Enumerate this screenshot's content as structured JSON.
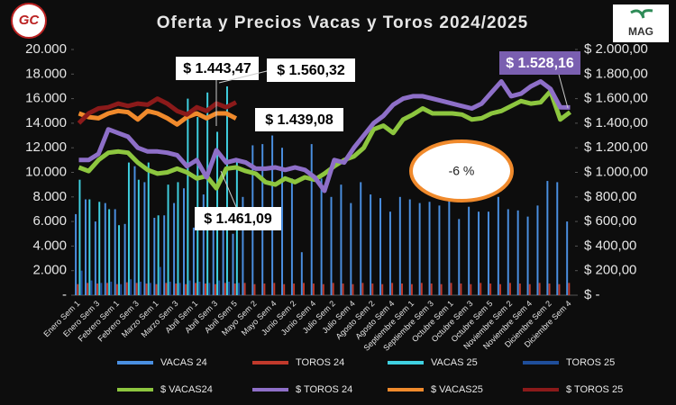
{
  "chart_data": {
    "type": "bar_line",
    "title": "Oferta y Precios Vacas y Toros 2024/2025",
    "logos": [
      "GC",
      "MAG"
    ],
    "categories": [
      "Enero Sem 1",
      null,
      "Enero Sem 3",
      null,
      "Febrero Sem 1",
      null,
      "Febrero Sem 3",
      null,
      "Marzo Sem 1",
      null,
      "Marzo Sem 3",
      null,
      "Abril Sem 1",
      null,
      "Abril Sem 3",
      null,
      "Abril Sem 5",
      null,
      "Mayo Sem 2",
      null,
      "Mayo Sem 4",
      null,
      "Junio Sem 2",
      null,
      "Junio Sem 4",
      null,
      "Julio Sem 2",
      null,
      "Julio Sem 4",
      null,
      "Agosto Sem 2",
      null,
      "Agosto Sem 4",
      null,
      "Septiembre Sem 1",
      null,
      "Septiembre Sem 3",
      null,
      "Octubre Sem 1",
      null,
      "Octubre Sem 3",
      null,
      "Octubre Sem 5",
      null,
      "Noviembre Sem 2",
      null,
      "Noviembre Sem 4",
      null,
      "Diciembre Sem 2",
      null,
      "Diciembre Sem 4"
    ],
    "series": [
      {
        "name": "VACAS 24",
        "kind": "bar",
        "color": "#4a8fe0",
        "values": [
          6600,
          7800,
          6000,
          7500,
          7000,
          5800,
          10500,
          9200,
          6300,
          6500,
          7500,
          8700,
          5500,
          8200,
          5700,
          6200,
          5000,
          8000,
          12200,
          12300,
          13000,
          12000,
          9500,
          3500,
          12300,
          9500,
          8000,
          9000,
          7500,
          9200,
          8200,
          7900,
          6800,
          8000,
          7800,
          7500,
          7600,
          7300,
          7800,
          6200,
          7200,
          6800,
          6800,
          8000,
          7000,
          6900,
          6400,
          7300,
          9300,
          9200,
          6000
        ]
      },
      {
        "name": "TOROS 24",
        "kind": "bar",
        "color": "#c0392b",
        "values": [
          900,
          1000,
          950,
          1000,
          900,
          1050,
          1000,
          950,
          900,
          1000,
          950,
          900,
          1000,
          950,
          900,
          1000,
          950,
          1000,
          900,
          950,
          1000,
          900,
          950,
          1000,
          950,
          900,
          1000,
          950,
          900,
          1000,
          950,
          900,
          1000,
          950,
          900,
          1000,
          950,
          900,
          1000,
          950,
          900,
          1000,
          950,
          900,
          1000,
          950,
          900,
          1000,
          950,
          900,
          1000
        ]
      },
      {
        "name": "VACAS 25",
        "kind": "bar",
        "color": "#3fd0e0",
        "values": [
          9400,
          7800,
          7600,
          7000,
          5700,
          10800,
          9400,
          10800,
          6500,
          9000,
          9200,
          16000,
          14500,
          16500,
          13300,
          17000,
          11000,
          null,
          null,
          null,
          null,
          null,
          null,
          null,
          null,
          null,
          null,
          null,
          null,
          null,
          null,
          null,
          null,
          null,
          null,
          null,
          null,
          null,
          null,
          null,
          null,
          null,
          null,
          null,
          null,
          null,
          null,
          null,
          null,
          null,
          null
        ]
      },
      {
        "name": "TOROS 25",
        "kind": "bar",
        "color": "#1f4e9a",
        "values": [
          2000,
          1200,
          1000,
          1100,
          900,
          1300,
          1100,
          1000,
          2300,
          1100,
          1000,
          1200,
          1100,
          1000,
          1200,
          1100,
          1000,
          null,
          null,
          null,
          null,
          null,
          null,
          null,
          null,
          null,
          null,
          null,
          null,
          null,
          null,
          null,
          null,
          null,
          null,
          null,
          null,
          null,
          null,
          null,
          null,
          null,
          null,
          null,
          null,
          null,
          null,
          null,
          null,
          null,
          null
        ]
      },
      {
        "name": "$ VACAS24",
        "kind": "line",
        "axis": "y2",
        "color": "#8dc63f",
        "values": [
          1040,
          1010,
          1100,
          1160,
          1170,
          1160,
          1080,
          1020,
          990,
          1000,
          1030,
          1000,
          950,
          970,
          870,
          1030,
          1040,
          1010,
          990,
          920,
          900,
          950,
          920,
          960,
          940,
          990,
          1050,
          1100,
          1130,
          1200,
          1350,
          1380,
          1320,
          1430,
          1470,
          1520,
          1480,
          1480,
          1480,
          1470,
          1430,
          1440,
          1480,
          1500,
          1540,
          1580,
          1560,
          1570,
          1660,
          1430,
          1490
        ]
      },
      {
        "name": "$ TOROS 24",
        "kind": "line",
        "axis": "y2",
        "color": "#8e6fc8",
        "values": [
          1100,
          1100,
          1150,
          1350,
          1320,
          1290,
          1200,
          1170,
          1170,
          1160,
          1140,
          1050,
          1100,
          960,
          1180,
          1080,
          1100,
          1080,
          1030,
          1030,
          1040,
          1020,
          1040,
          1020,
          960,
          850,
          1100,
          1080,
          1200,
          1300,
          1400,
          1460,
          1550,
          1600,
          1620,
          1620,
          1600,
          1580,
          1560,
          1540,
          1520,
          1560,
          1650,
          1740,
          1620,
          1640,
          1700,
          1740,
          1680,
          1530,
          1528.16
        ]
      },
      {
        "name": "$ VACAS25",
        "kind": "line",
        "axis": "y2",
        "color": "#f08a2c",
        "values": [
          1480,
          1450,
          1440,
          1480,
          1500,
          1490,
          1430,
          1500,
          1480,
          1440,
          1390,
          1450,
          1480,
          1440,
          1480,
          1480,
          1439.08,
          null,
          null,
          null,
          null,
          null,
          null,
          null,
          null,
          null,
          null,
          null,
          null,
          null,
          null,
          null,
          null,
          null,
          null,
          null,
          null,
          null,
          null,
          null,
          null,
          null,
          null,
          null,
          null,
          null,
          null,
          null,
          null,
          null,
          null
        ]
      },
      {
        "name": "$ TOROS 25",
        "kind": "line",
        "axis": "y2",
        "color": "#8b1a1a",
        "values": [
          1400,
          1480,
          1520,
          1530,
          1560,
          1540,
          1560,
          1550,
          1600,
          1560,
          1500,
          1470,
          1530,
          1500,
          1560.32,
          1530,
          1570,
          null,
          null,
          null,
          null,
          null,
          null,
          null,
          null,
          null,
          null,
          null,
          null,
          null,
          null,
          null,
          null,
          null,
          null,
          null,
          null,
          null,
          null,
          null,
          null,
          null,
          null,
          null,
          null,
          null,
          null,
          null,
          null,
          null,
          null
        ]
      }
    ],
    "annotations": [
      "$ 1.443,47",
      "$ 1.560,32",
      "$ 1.439,08",
      "$ 1.461,09",
      "$ 1.528,16",
      "-6 %"
    ],
    "ylim": [
      0,
      20000
    ],
    "yticks": [
      {
        "value": 0,
        "label": "-"
      },
      {
        "value": 2000,
        "label": "2.000"
      },
      {
        "value": 4000,
        "label": "4.000"
      },
      {
        "value": 6000,
        "label": "6.000"
      },
      {
        "value": 8000,
        "label": "8.000"
      },
      {
        "value": 10000,
        "label": "10.000"
      },
      {
        "value": 12000,
        "label": "12.000"
      },
      {
        "value": 14000,
        "label": "14.000"
      },
      {
        "value": 16000,
        "label": "16.000"
      },
      {
        "value": 18000,
        "label": "18.000"
      },
      {
        "value": 20000,
        "label": "20.000"
      }
    ],
    "y2lim": [
      0,
      2000
    ],
    "y2ticks": [
      {
        "value": 0,
        "label": "$ -"
      },
      {
        "value": 200,
        "label": "$ 200,00"
      },
      {
        "value": 400,
        "label": "$ 400,00"
      },
      {
        "value": 600,
        "label": "$ 600,00"
      },
      {
        "value": 800,
        "label": "$ 800,00"
      },
      {
        "value": 1000,
        "label": "$ 1.000,00"
      },
      {
        "value": 1200,
        "label": "$ 1.200,00"
      },
      {
        "value": 1400,
        "label": "$ 1.400,00"
      },
      {
        "value": 1600,
        "label": "$ 1.600,00"
      },
      {
        "value": 1800,
        "label": "$ 1.800,00"
      },
      {
        "value": 2000,
        "label": "$ 2.000,00"
      }
    ],
    "grid": false,
    "legend": "bottom"
  }
}
